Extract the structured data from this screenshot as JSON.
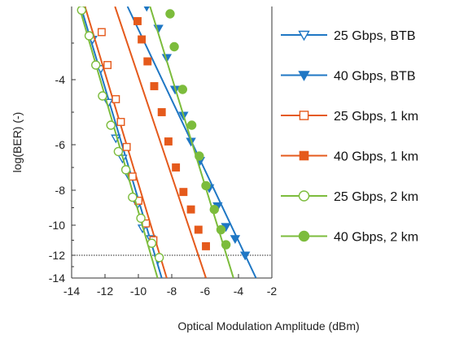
{
  "chart_data": {
    "type": "line",
    "title": "",
    "xlabel": "Optical Modulation Amplitude (dBm)",
    "ylabel": "log(BER) (-)",
    "xlim": [
      -14,
      -2
    ],
    "ylim": [
      -14,
      -2
    ],
    "x_ticks": [
      -14,
      -12,
      -10,
      -8,
      -6,
      -4,
      -2
    ],
    "x_tick_labels": [
      "-14",
      "-12",
      "-10",
      "-8",
      "-6",
      "-4",
      "-2"
    ],
    "y_ticks": [
      -4,
      -6,
      -8,
      -10,
      -12,
      -14
    ],
    "y_tick_labels": [
      "-4",
      "-6",
      "-8",
      "-10",
      "-12",
      "-14"
    ],
    "y_scale": "transformed (compressed toward low BER)",
    "grid": false,
    "reference_line": {
      "y": -12,
      "style": "dotted"
    },
    "legend_position": "right, outside plot",
    "colors": {
      "btb": "#1f77c4",
      "km1": "#e55a1c",
      "km2": "#7cbc3c"
    },
    "series": [
      {
        "name": "25 Gbps, BTB",
        "color": "#1f77c4",
        "marker": "triangle-down-open",
        "x": [
          -13.3,
          -12.75,
          -12.25,
          -11.8,
          -11.35,
          -10.95,
          -10.55,
          -10.05,
          -9.75,
          -9.25,
          -8.8
        ],
        "y": [
          -2.0,
          -2.9,
          -3.7,
          -4.7,
          -5.8,
          -6.6,
          -7.4,
          -8.8,
          -10.2,
          -10.9,
          -12.3
        ],
        "fit_x": [
          -13.45,
          -8.6
        ],
        "fit_y": [
          -2.0,
          -14.0
        ]
      },
      {
        "name": "40 Gbps, BTB",
        "color": "#1f77c4",
        "marker": "triangle-down-filled",
        "x": [
          -9.5,
          -8.8,
          -8.3,
          -7.8,
          -7.3,
          -6.85,
          -6.3,
          -5.75,
          -5.25,
          -4.75,
          -4.2,
          -3.6
        ],
        "y": [
          -2.0,
          -2.6,
          -3.4,
          -4.3,
          -5.1,
          -5.9,
          -6.7,
          -7.9,
          -8.9,
          -10.1,
          -10.9,
          -12.0
        ],
        "fit_x": [
          -10.65,
          -2.95
        ],
        "fit_y": [
          -2.0,
          -14.0
        ]
      },
      {
        "name": "25 Gbps, 1 km",
        "color": "#e55a1c",
        "marker": "square-open",
        "x": [
          -12.2,
          -11.85,
          -11.35,
          -11.05,
          -10.7,
          -10.35,
          -10.0,
          -9.55,
          -9.1
        ],
        "y": [
          -2.7,
          -3.6,
          -4.6,
          -5.3,
          -6.1,
          -7.4,
          -8.6,
          -9.9,
          -11.0
        ],
        "fit_x": [
          -13.2,
          -8.3
        ],
        "fit_y": [
          -2.0,
          -14.0
        ]
      },
      {
        "name": "40 Gbps, 1 km",
        "color": "#e55a1c",
        "marker": "square-filled",
        "x": [
          -10.05,
          -9.8,
          -9.45,
          -9.05,
          -8.6,
          -8.2,
          -7.75,
          -7.3,
          -6.85,
          -6.4,
          -5.95
        ],
        "y": [
          -2.4,
          -2.9,
          -3.5,
          -4.2,
          -5.0,
          -5.9,
          -7.0,
          -8.1,
          -9.1,
          -10.3,
          -11.4
        ],
        "fit_x": [
          -11.4,
          -5.95
        ],
        "fit_y": [
          -2.0,
          -14.0
        ]
      },
      {
        "name": "25 Gbps, 2 km",
        "color": "#7cbc3c",
        "marker": "circle-open",
        "x": [
          -13.4,
          -12.95,
          -12.55,
          -12.15,
          -11.65,
          -11.2,
          -10.75,
          -10.35,
          -9.85,
          -9.2,
          -8.75
        ],
        "y": [
          -2.1,
          -2.8,
          -3.6,
          -4.5,
          -5.4,
          -6.3,
          -7.1,
          -8.4,
          -9.6,
          -11.2,
          -12.2
        ],
        "fit_x": [
          -13.55,
          -8.85
        ],
        "fit_y": [
          -2.0,
          -14.0
        ]
      },
      {
        "name": "40 Gbps, 2 km",
        "color": "#7cbc3c",
        "marker": "circle-filled",
        "x": [
          -8.1,
          -7.85,
          -7.35,
          -6.8,
          -6.35,
          -5.95,
          -5.45,
          -5.05,
          -4.75
        ],
        "y": [
          -2.2,
          -3.1,
          -4.3,
          -5.4,
          -6.5,
          -7.8,
          -9.1,
          -10.3,
          -11.3
        ],
        "fit_x": [
          -9.3,
          -4.3
        ],
        "fit_y": [
          -2.0,
          -14.0
        ]
      }
    ]
  }
}
